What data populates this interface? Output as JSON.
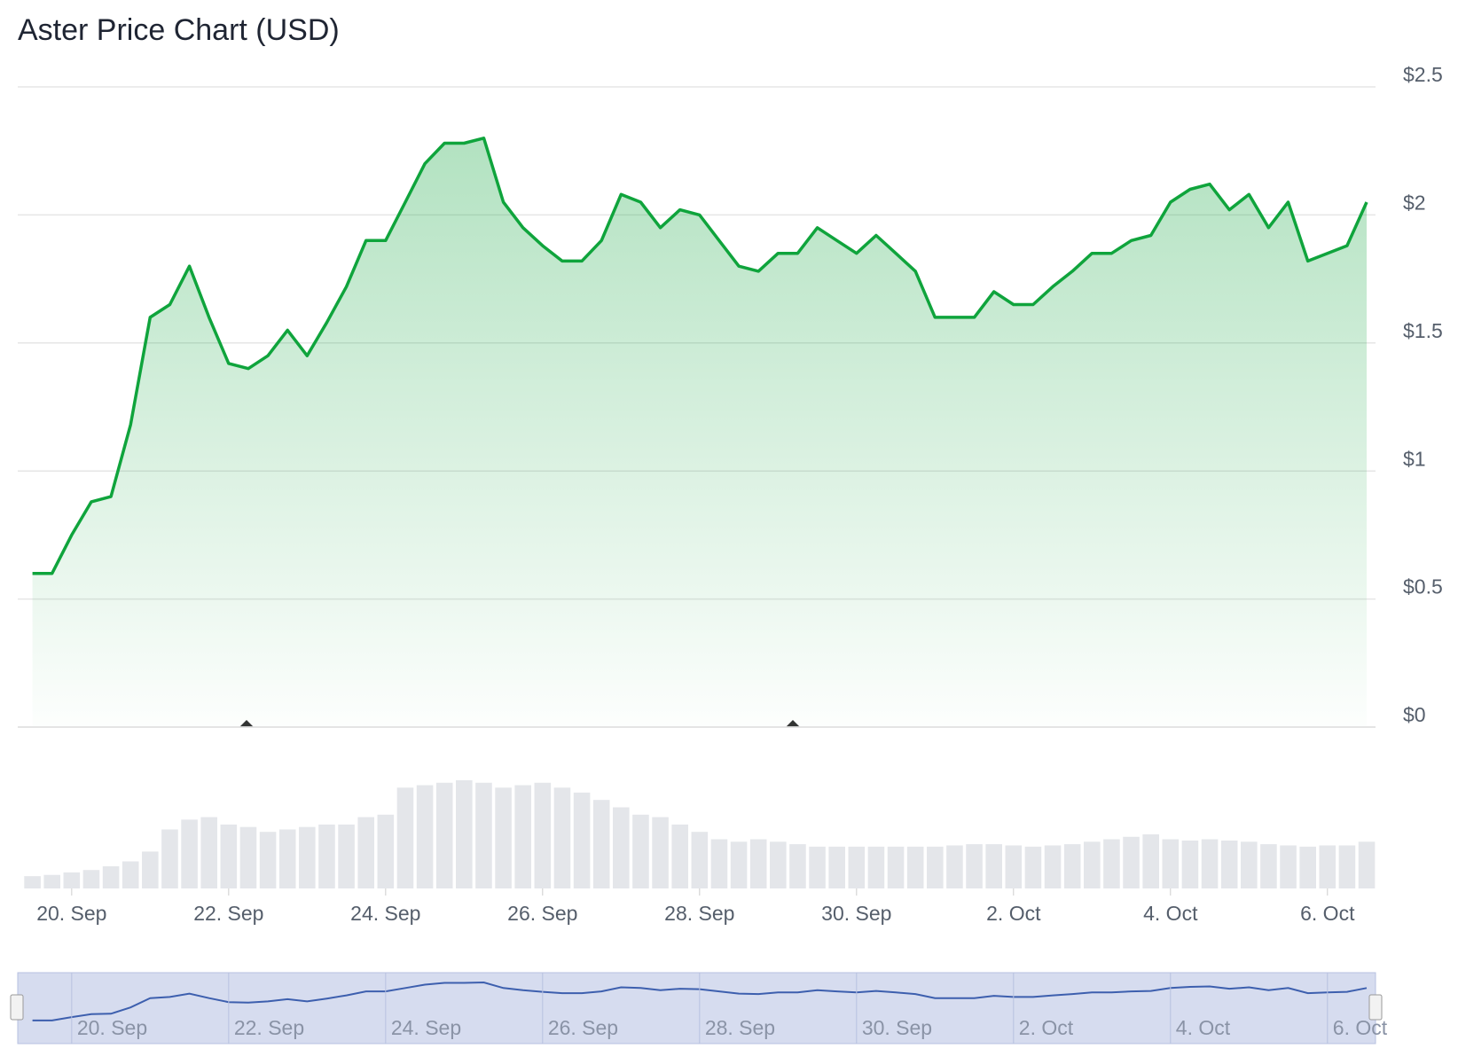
{
  "chart_data": {
    "type": "area",
    "title": "Aster Price Chart (USD)",
    "categories": [
      null,
      null,
      "20. Sep",
      null,
      null,
      null,
      null,
      null,
      null,
      null,
      "22. Sep",
      null,
      null,
      null,
      null,
      null,
      null,
      null,
      "24. Sep",
      null,
      null,
      null,
      null,
      null,
      null,
      null,
      "26. Sep",
      null,
      null,
      null,
      null,
      null,
      null,
      null,
      "28. Sep",
      null,
      null,
      null,
      null,
      null,
      null,
      null,
      "30. Sep",
      null,
      null,
      null,
      null,
      null,
      null,
      null,
      "2. Oct",
      null,
      null,
      null,
      null,
      null,
      null,
      null,
      "4. Oct",
      null,
      null,
      null,
      null,
      null,
      null,
      null,
      "6. Oct",
      null,
      null
    ],
    "series": [
      {
        "color": "#0fa43c",
        "values": [
          0.6,
          0.6,
          0.75,
          0.88,
          0.9,
          1.18,
          1.6,
          1.65,
          1.8,
          1.6,
          1.42,
          1.4,
          1.45,
          1.55,
          1.45,
          1.58,
          1.72,
          1.9,
          1.9,
          2.05,
          2.2,
          2.28,
          2.28,
          2.3,
          2.05,
          1.95,
          1.88,
          1.82,
          1.82,
          1.9,
          2.08,
          2.05,
          1.95,
          2.02,
          2.0,
          1.9,
          1.8,
          1.78,
          1.85,
          1.85,
          1.95,
          1.9,
          1.85,
          1.92,
          1.85,
          1.78,
          1.6,
          1.6,
          1.6,
          1.7,
          1.65,
          1.65,
          1.72,
          1.78,
          1.85,
          1.85,
          1.9,
          1.92,
          2.05,
          2.1,
          2.12,
          2.02,
          2.08,
          1.95,
          2.05,
          1.82,
          1.85,
          1.88,
          2.05
        ]
      },
      {
        "type": "column",
        "color": "#e4e6ea",
        "values": [
          10,
          11,
          13,
          15,
          18,
          22,
          30,
          48,
          56,
          58,
          52,
          50,
          46,
          48,
          50,
          52,
          52,
          58,
          60,
          82,
          84,
          86,
          88,
          86,
          82,
          84,
          86,
          82,
          78,
          72,
          66,
          60,
          58,
          52,
          46,
          40,
          38,
          40,
          38,
          36,
          34,
          34,
          34,
          34,
          34,
          34,
          34,
          35,
          36,
          36,
          35,
          34,
          35,
          36,
          38,
          40,
          42,
          44,
          40,
          39,
          40,
          39,
          38,
          36,
          35,
          34,
          35,
          35,
          38
        ]
      }
    ],
    "ylim": [
      0,
      2.5
    ],
    "yticks": [
      {
        "value": 0,
        "label": "$0"
      },
      {
        "value": 0.5,
        "label": "$0.5"
      },
      {
        "value": 1,
        "label": "$1"
      },
      {
        "value": 1.5,
        "label": "$1.5"
      },
      {
        "value": 2,
        "label": "$2"
      },
      {
        "value": 2.5,
        "label": "$2.5"
      }
    ],
    "grid": true
  }
}
